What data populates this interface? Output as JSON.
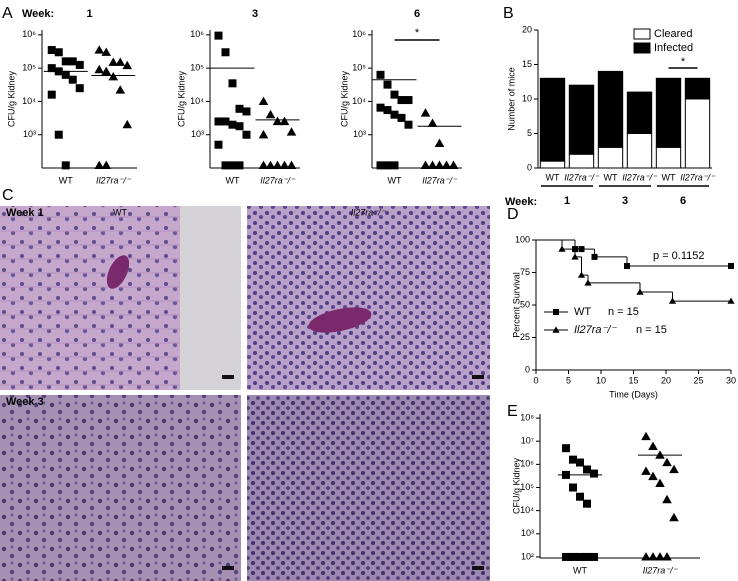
{
  "figure": {
    "panels": [
      "A",
      "B",
      "C",
      "D",
      "E"
    ],
    "week_label": "Week:",
    "histology": {
      "row_labels": [
        "Week 1",
        "Week 3"
      ],
      "column_labels": [
        "WT",
        "Il27ra⁻/⁻"
      ]
    }
  },
  "chart_data": [
    {
      "type": "dot",
      "title": "1",
      "y_label": "CFU/g Kidney",
      "log": true,
      "categories": [
        "WT",
        "Il27ra⁻/⁻"
      ],
      "markers": [
        "square",
        "triangle"
      ],
      "values": [
        [
          350000,
          300000,
          160000,
          160000,
          125000,
          100000,
          80000,
          63000,
          45000,
          25000,
          16000,
          1000,
          120
        ],
        [
          350000,
          300000,
          150000,
          150000,
          120000,
          90000,
          80000,
          55000,
          22000,
          2000,
          120,
          120
        ]
      ],
      "lines": [
        80000,
        60000
      ],
      "ylim": [
        100,
        1400000
      ],
      "yticks": [
        {
          "value": 1000,
          "label": "10³"
        },
        {
          "value": 10000,
          "label": "10⁴"
        },
        {
          "value": 100000,
          "label": "10⁵"
        },
        {
          "value": 1000000,
          "label": "10⁶"
        }
      ]
    },
    {
      "type": "dot",
      "title": "3",
      "y_label": "CFU/g Kidney",
      "log": true,
      "categories": [
        "WT",
        "Il27ra⁻/⁻"
      ],
      "markers": [
        "square",
        "triangle"
      ],
      "values": [
        [
          950000,
          300000,
          35000,
          6000,
          5000,
          2500,
          2500,
          2000,
          1800,
          1000,
          500,
          120,
          120,
          120
        ],
        [
          10000,
          4000,
          2500,
          2500,
          1200,
          1000,
          120,
          120,
          120,
          120,
          120
        ]
      ],
      "lines": [
        100000,
        2800
      ],
      "ylim": [
        100,
        1400000
      ],
      "yticks": [
        {
          "value": 1000,
          "label": "10³"
        },
        {
          "value": 10000,
          "label": "10⁴"
        },
        {
          "value": 100000,
          "label": "10⁵"
        },
        {
          "value": 1000000,
          "label": "10⁶"
        }
      ]
    },
    {
      "type": "dot",
      "title": "6",
      "y_label": "CFU/g Kidney",
      "log": true,
      "categories": [
        "WT",
        "Il27ra⁻/⁻"
      ],
      "markers": [
        "square",
        "triangle"
      ],
      "values": [
        [
          63000,
          32000,
          16000,
          11000,
          11000,
          6500,
          5500,
          4000,
          3200,
          2000,
          120,
          120,
          120
        ],
        [
          4500,
          2200,
          550,
          120,
          120,
          120,
          120,
          120,
          120,
          120,
          120,
          120,
          120
        ]
      ],
      "lines": [
        45000,
        1800
      ],
      "significance": "*",
      "ylim": [
        100,
        1400000
      ],
      "yticks": [
        {
          "value": 1000,
          "label": "10³"
        },
        {
          "value": 10000,
          "label": "10⁴"
        },
        {
          "value": 100000,
          "label": "10⁵"
        },
        {
          "value": 1000000,
          "label": "10⁶"
        }
      ]
    },
    {
      "type": "stacked_bar",
      "y_label": "Number of mice",
      "categories": [
        "WT",
        "Il27ra⁻/⁻",
        "WT",
        "Il27ra⁻/⁻",
        "WT",
        "Il27ra⁻/⁻"
      ],
      "week_groups": [
        "1",
        "3",
        "6"
      ],
      "series": [
        {
          "name": "Cleared",
          "color": "#ffffff",
          "values": [
            1,
            2,
            3,
            5,
            3,
            10
          ]
        },
        {
          "name": "Infected",
          "color": "#000000",
          "values": [
            12,
            10,
            11,
            6,
            10,
            3
          ]
        }
      ],
      "significance": "*",
      "ylim": [
        0,
        20
      ],
      "yticks": [
        0,
        5,
        10,
        15,
        20
      ],
      "legend": "top-right"
    },
    {
      "type": "survival",
      "y_label": "Percent Survival",
      "x_label": "Time (Days)",
      "annotation": "p = 0.1152",
      "series": [
        {
          "name": "WT",
          "n_label": "n = 15",
          "marker": "square",
          "x": [
            0,
            6,
            7,
            9,
            14,
            30
          ],
          "values": [
            100,
            93,
            93,
            87,
            80,
            80
          ]
        },
        {
          "name": "Il27ra⁻/⁻",
          "n_label": "n = 15",
          "marker": "triangle",
          "x": [
            0,
            4,
            6,
            7,
            8,
            16,
            21,
            30
          ],
          "values": [
            100,
            93,
            87,
            73,
            67,
            60,
            53,
            53
          ]
        }
      ],
      "xlim": [
        0,
        30
      ],
      "xticks": [
        0,
        5,
        10,
        15,
        20,
        25,
        30
      ],
      "ylim": [
        0,
        100
      ],
      "yticks": [
        0,
        25,
        50,
        75,
        100
      ]
    },
    {
      "type": "dot",
      "y_label": "CFU/g Kidney",
      "log": true,
      "categories": [
        "WT",
        "Il27ra⁻/⁻"
      ],
      "markers": [
        "square",
        "triangle"
      ],
      "values": [
        [
          5000000,
          1600000,
          1200000,
          600000,
          400000,
          350000,
          100000,
          40000,
          20000,
          100,
          100,
          100,
          100,
          100
        ],
        [
          16000000,
          6000000,
          2500000,
          1200000,
          600000,
          500000,
          300000,
          150000,
          30000,
          5000,
          100,
          100,
          100,
          100
        ]
      ],
      "lines": [
        350000,
        2500000
      ],
      "ylim": [
        90,
        150000000
      ],
      "yticks": [
        {
          "value": 100,
          "label": "10²"
        },
        {
          "value": 1000,
          "label": "10³"
        },
        {
          "value": 10000,
          "label": "10⁴"
        },
        {
          "value": 100000,
          "label": "10⁵"
        },
        {
          "value": 1000000,
          "label": "10⁶"
        },
        {
          "value": 10000000,
          "label": "10⁷"
        },
        {
          "value": 100000000,
          "label": "10⁸"
        }
      ]
    }
  ]
}
